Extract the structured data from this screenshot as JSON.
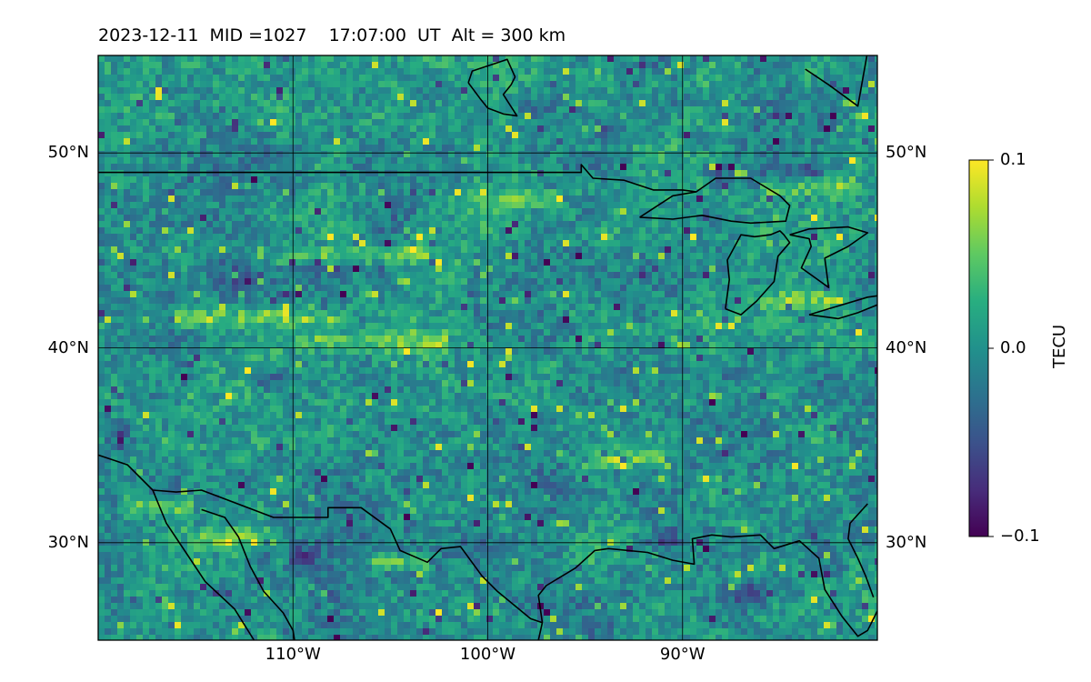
{
  "title": "2023-12-11  MID =1027    17:07:00  UT  Alt = 300 km",
  "map": {
    "lat_range": [
      25,
      55
    ],
    "lon_range": [
      -120,
      -80
    ],
    "lat_ticks": [
      {
        "value": 50,
        "label": "50°N"
      },
      {
        "value": 40,
        "label": "40°N"
      },
      {
        "value": 30,
        "label": "30°N"
      }
    ],
    "lon_ticks": [
      {
        "value": -110,
        "label": "110°W"
      },
      {
        "value": -100,
        "label": "100°W"
      },
      {
        "value": -90,
        "label": "90°W"
      }
    ],
    "colormap": "viridis",
    "data_variable": "TEC perturbation (TECU)",
    "value_range": [
      -0.1,
      0.1
    ],
    "bright_bands": [
      {
        "lat": 47.6,
        "lon_from": -101,
        "lon_to": -96
      },
      {
        "lat": 48.2,
        "lon_from": -86,
        "lon_to": -81
      },
      {
        "lat": 44.8,
        "lon_from": -111,
        "lon_to": -103
      },
      {
        "lat": 41.5,
        "lon_from": -116,
        "lon_to": -107
      },
      {
        "lat": 40.3,
        "lon_from": -110,
        "lon_to": -102
      },
      {
        "lat": 34.3,
        "lon_from": -95,
        "lon_to": -91
      },
      {
        "lat": 31.8,
        "lon_from": -119,
        "lon_to": -115
      },
      {
        "lat": 30.2,
        "lon_from": -115,
        "lon_to": -111
      },
      {
        "lat": 29.0,
        "lon_from": -106,
        "lon_to": -103
      },
      {
        "lat": 42.5,
        "lon_from": -86,
        "lon_to": -82
      }
    ],
    "dark_patches": [
      {
        "lat": 48.9,
        "lon": -88.3
      },
      {
        "lat": 48.9,
        "lon": -83.8
      },
      {
        "lat": 43.4,
        "lon": -112.5
      },
      {
        "lat": 38.4,
        "lon": -111
      },
      {
        "lat": 29.2,
        "lon": -109.5
      },
      {
        "lat": 27.2,
        "lon": -86.5
      },
      {
        "lat": 30.2,
        "lon": -91
      },
      {
        "lat": 35.7,
        "lon": -119
      },
      {
        "lat": 51,
        "lon": -94
      },
      {
        "lat": 47,
        "lon": -94.5
      }
    ]
  },
  "colorbar": {
    "label": "TECU",
    "ticks": [
      {
        "value": 0.1,
        "label": "0.1"
      },
      {
        "value": 0.0,
        "label": "0.0"
      },
      {
        "value": -0.1,
        "label": "−0.1"
      }
    ]
  },
  "coastlines": [
    [
      [
        -120,
        49
      ],
      [
        -115,
        49
      ],
      [
        -110,
        49
      ],
      [
        -105,
        49
      ],
      [
        -100,
        49
      ],
      [
        -95.2,
        49
      ],
      [
        -95.2,
        49.4
      ],
      [
        -94.6,
        48.7
      ],
      [
        -93,
        48.6
      ],
      [
        -91.5,
        48.1
      ],
      [
        -90,
        48.1
      ],
      [
        -89.3,
        48
      ]
    ],
    [
      [
        -120,
        34.5
      ],
      [
        -118.5,
        34.0
      ],
      [
        -117.2,
        32.7
      ],
      [
        -116,
        32.6
      ],
      [
        -114.7,
        32.7
      ],
      [
        -111,
        31.3
      ],
      [
        -108.2,
        31.3
      ],
      [
        -108.2,
        31.8
      ],
      [
        -106.5,
        31.8
      ],
      [
        -105,
        30.7
      ],
      [
        -104.5,
        29.6
      ],
      [
        -103.1,
        29.0
      ],
      [
        -102.4,
        29.7
      ],
      [
        -101.4,
        29.8
      ],
      [
        -100.3,
        28.3
      ],
      [
        -99.5,
        27.5
      ],
      [
        -97.8,
        26.1
      ],
      [
        -97.2,
        25.9
      ],
      [
        -97.4,
        25
      ],
      [
        -97.7,
        24
      ]
    ],
    [
      [
        -97.2,
        25.9
      ],
      [
        -97.4,
        27.3
      ],
      [
        -97,
        27.8
      ],
      [
        -95.5,
        28.7
      ],
      [
        -94.5,
        29.6
      ],
      [
        -93.8,
        29.7
      ],
      [
        -91.8,
        29.5
      ],
      [
        -90.5,
        29.1
      ],
      [
        -89.4,
        28.9
      ],
      [
        -89.5,
        30.2
      ],
      [
        -88.5,
        30.4
      ],
      [
        -87.5,
        30.3
      ],
      [
        -86,
        30.4
      ],
      [
        -85.3,
        29.7
      ],
      [
        -84,
        30.1
      ],
      [
        -83,
        29.2
      ],
      [
        -82.7,
        27.6
      ],
      [
        -81.8,
        26.2
      ],
      [
        -81,
        25.2
      ],
      [
        -80.5,
        25.5
      ],
      [
        -80,
        26.5
      ]
    ],
    [
      [
        -117.2,
        32.7
      ],
      [
        -116.5,
        31
      ],
      [
        -115.5,
        29.5
      ],
      [
        -114.5,
        28
      ],
      [
        -113,
        26.6
      ],
      [
        -112,
        25
      ],
      [
        -111.5,
        24.4
      ]
    ],
    [
      [
        -114.7,
        31.7
      ],
      [
        -113.5,
        31.3
      ],
      [
        -112.8,
        30.3
      ],
      [
        -112.2,
        28.8
      ],
      [
        -111.5,
        27.5
      ],
      [
        -110.5,
        26.4
      ],
      [
        -110,
        25.5
      ],
      [
        -109.8,
        24.2
      ]
    ],
    [
      [
        -80.5,
        32
      ],
      [
        -81.4,
        31
      ],
      [
        -81.5,
        30.2
      ],
      [
        -81,
        29.2
      ],
      [
        -80.6,
        28.3
      ],
      [
        -80.2,
        27.2
      ]
    ],
    [
      [
        -80,
        58
      ],
      [
        -81,
        52.4
      ],
      [
        -82.5,
        53.5
      ],
      [
        -83.7,
        54.3
      ]
    ],
    [
      [
        -101,
        53.6
      ],
      [
        -100.8,
        54.2
      ],
      [
        -99.6,
        54.6
      ],
      [
        -99,
        54.8
      ],
      [
        -98.6,
        53.9
      ],
      [
        -98.8,
        53.5
      ],
      [
        -99.2,
        53
      ],
      [
        -98.5,
        51.9
      ],
      [
        -99.2,
        52
      ],
      [
        -100,
        52.3
      ],
      [
        -100.4,
        52.8
      ],
      [
        -101,
        53.6
      ]
    ],
    [
      [
        -92.2,
        46.7
      ],
      [
        -90.5,
        46.6
      ],
      [
        -89,
        46.8
      ],
      [
        -87.5,
        46.5
      ],
      [
        -86.5,
        46.4
      ],
      [
        -84.7,
        46.5
      ],
      [
        -84.5,
        47.3
      ],
      [
        -85,
        47.8
      ],
      [
        -86.5,
        48.7
      ],
      [
        -88.3,
        48.7
      ],
      [
        -89.3,
        48
      ],
      [
        -90.5,
        47.8
      ],
      [
        -92.2,
        46.7
      ]
    ],
    [
      [
        -87.8,
        42
      ],
      [
        -87.6,
        43.5
      ],
      [
        -87.7,
        44.5
      ],
      [
        -87,
        45.8
      ],
      [
        -86.3,
        45.7
      ],
      [
        -85.5,
        45.8
      ],
      [
        -85,
        46
      ],
      [
        -84.8,
        45.8
      ],
      [
        -84.5,
        45.4
      ],
      [
        -85.1,
        44.7
      ],
      [
        -85.3,
        43.4
      ],
      [
        -86.2,
        42.4
      ],
      [
        -87,
        41.7
      ],
      [
        -87.8,
        42
      ]
    ],
    [
      [
        -84.5,
        45.8
      ],
      [
        -83.5,
        45.6
      ],
      [
        -83.4,
        45.2
      ],
      [
        -83.9,
        44.1
      ],
      [
        -82.5,
        43.1
      ],
      [
        -82.7,
        44.6
      ],
      [
        -81.5,
        45.2
      ],
      [
        -80.5,
        45.9
      ],
      [
        -81.5,
        46.2
      ],
      [
        -83.5,
        46.1
      ],
      [
        -84.5,
        45.8
      ]
    ],
    [
      [
        -83.5,
        41.7
      ],
      [
        -82,
        41.5
      ],
      [
        -81,
        41.8
      ],
      [
        -80,
        42.2
      ],
      [
        -79,
        42.8
      ],
      [
        -80.5,
        42.6
      ],
      [
        -82.5,
        42.0
      ],
      [
        -83.5,
        41.7
      ]
    ],
    [
      [
        -80,
        43.2
      ],
      [
        -79.3,
        43.8
      ],
      [
        -80,
        44.1
      ]
    ]
  ]
}
